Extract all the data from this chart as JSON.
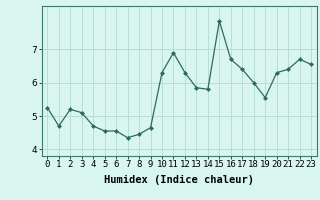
{
  "x": [
    0,
    1,
    2,
    3,
    4,
    5,
    6,
    7,
    8,
    9,
    10,
    11,
    12,
    13,
    14,
    15,
    16,
    17,
    18,
    19,
    20,
    21,
    22,
    23
  ],
  "y": [
    5.25,
    4.7,
    5.2,
    5.1,
    4.7,
    4.55,
    4.55,
    4.35,
    4.45,
    4.65,
    6.3,
    6.9,
    6.3,
    5.85,
    5.8,
    7.85,
    6.7,
    6.4,
    6.0,
    5.55,
    6.3,
    6.4,
    6.7,
    6.55
  ],
  "line_color": "#2d6b60",
  "marker": "D",
  "marker_size": 2.0,
  "bg_color": "#d9f5f0",
  "grid_color": "#b8ddd7",
  "xlabel": "Humidex (Indice chaleur)",
  "xlim": [
    -0.5,
    23.5
  ],
  "ylim": [
    3.8,
    8.3
  ],
  "yticks": [
    4,
    5,
    6,
    7
  ],
  "xticks": [
    0,
    1,
    2,
    3,
    4,
    5,
    6,
    7,
    8,
    9,
    10,
    11,
    12,
    13,
    14,
    15,
    16,
    17,
    18,
    19,
    20,
    21,
    22,
    23
  ],
  "tick_labelsize": 6.5,
  "xlabel_fontsize": 7.5,
  "linewidth": 0.9
}
